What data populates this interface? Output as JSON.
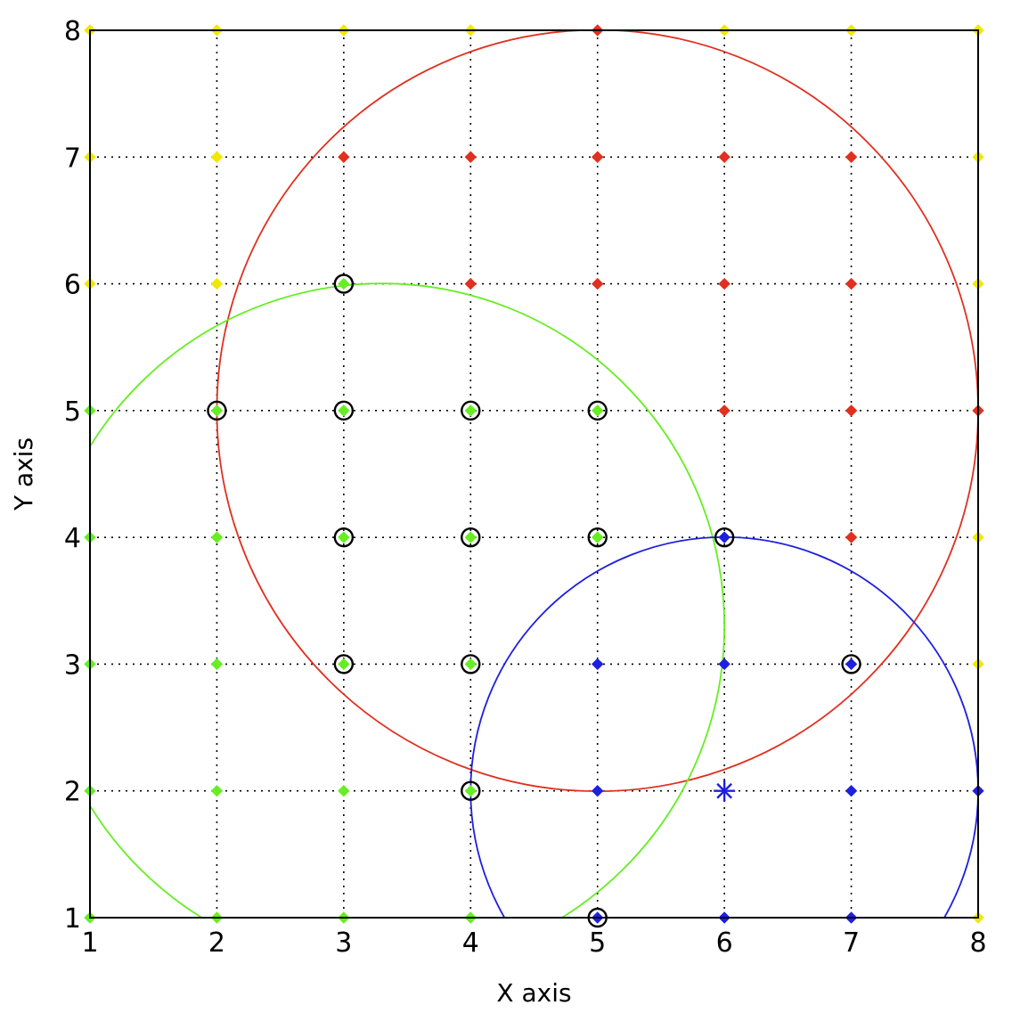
{
  "chart_data": {
    "type": "scatter",
    "title": "",
    "xlabel": "X axis",
    "ylabel": "Y axis",
    "xlim": [
      1,
      8
    ],
    "ylim": [
      1,
      8
    ],
    "x_ticks": [
      "1",
      "2",
      "3",
      "4",
      "5",
      "6",
      "7",
      "8"
    ],
    "y_ticks": [
      "1",
      "2",
      "3",
      "4",
      "5",
      "6",
      "7",
      "8"
    ],
    "grid": true,
    "grid_style": "dotted",
    "colors": {
      "yellow": "#f0e800",
      "red": "#e03020",
      "green": "#66ee22",
      "blue": "#1f1fe0",
      "circle_marker": "#000000"
    },
    "series": [
      {
        "color": "yellow",
        "points": [
          [
            1,
            8
          ],
          [
            2,
            8
          ],
          [
            3,
            8
          ],
          [
            4,
            8
          ],
          [
            6,
            8
          ],
          [
            7,
            8
          ],
          [
            8,
            8
          ],
          [
            1,
            7
          ],
          [
            2,
            7
          ],
          [
            8,
            7
          ],
          [
            1,
            6
          ],
          [
            2,
            6
          ],
          [
            8,
            6
          ],
          [
            8,
            4
          ],
          [
            8,
            3
          ],
          [
            8,
            1
          ]
        ]
      },
      {
        "color": "red",
        "points": [
          [
            5,
            8
          ],
          [
            3,
            7
          ],
          [
            4,
            7
          ],
          [
            5,
            7
          ],
          [
            6,
            7
          ],
          [
            7,
            7
          ],
          [
            4,
            6
          ],
          [
            5,
            6
          ],
          [
            6,
            6
          ],
          [
            7,
            6
          ],
          [
            6,
            5
          ],
          [
            7,
            5
          ],
          [
            8,
            5
          ],
          [
            7,
            4
          ]
        ]
      },
      {
        "color": "green",
        "points": [
          [
            1,
            5
          ],
          [
            1,
            4
          ],
          [
            2,
            4
          ],
          [
            1,
            3
          ],
          [
            2,
            3
          ],
          [
            1,
            2
          ],
          [
            2,
            2
          ],
          [
            3,
            2
          ],
          [
            1,
            1
          ],
          [
            2,
            1
          ],
          [
            3,
            1
          ],
          [
            4,
            1
          ],
          [
            3,
            6
          ],
          [
            2,
            5
          ],
          [
            3,
            5
          ],
          [
            4,
            5
          ],
          [
            5,
            5
          ],
          [
            3,
            4
          ],
          [
            4,
            4
          ],
          [
            5,
            4
          ],
          [
            3,
            3
          ],
          [
            4,
            3
          ],
          [
            4,
            2
          ]
        ]
      },
      {
        "color": "blue",
        "points": [
          [
            5,
            3
          ],
          [
            6,
            3
          ],
          [
            5,
            2
          ],
          [
            7,
            2
          ],
          [
            8,
            2
          ],
          [
            6,
            1
          ],
          [
            7,
            1
          ],
          [
            6,
            4
          ],
          [
            7,
            3
          ],
          [
            5,
            1
          ]
        ]
      }
    ],
    "centroids": [
      {
        "color": "blue",
        "marker": "star",
        "x": 6,
        "y": 2
      }
    ],
    "circled_points": [
      [
        3,
        6
      ],
      [
        2,
        5
      ],
      [
        3,
        5
      ],
      [
        4,
        5
      ],
      [
        5,
        5
      ],
      [
        3,
        4
      ],
      [
        4,
        4
      ],
      [
        5,
        4
      ],
      [
        6,
        4
      ],
      [
        3,
        3
      ],
      [
        4,
        3
      ],
      [
        7,
        3
      ],
      [
        4,
        2
      ],
      [
        5,
        1
      ]
    ],
    "circles": [
      {
        "color": "red",
        "cx": 5,
        "cy": 5,
        "r": 3
      },
      {
        "color": "green",
        "cx": 3.3,
        "cy": 3.3,
        "r": 2.7
      },
      {
        "color": "blue",
        "cx": 6,
        "cy": 2,
        "r": 2
      }
    ]
  }
}
